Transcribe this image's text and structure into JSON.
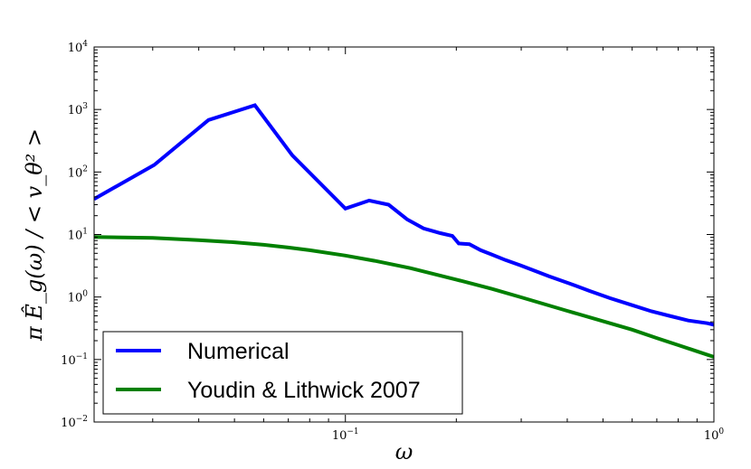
{
  "chart_data": {
    "type": "line",
    "xlabel": "ω",
    "ylabel": "π Ê_g(ω) / < v_θ² >",
    "xscale": "log",
    "yscale": "log",
    "xlim": [
      0.0208,
      1.0
    ],
    "ylim": [
      0.01,
      10000
    ],
    "x_ticks": [
      {
        "value": 0.1,
        "base": "10",
        "exp": "−1"
      },
      {
        "value": 1.0,
        "base": "10",
        "exp": "0"
      }
    ],
    "y_ticks": [
      {
        "value": 0.01,
        "base": "10",
        "exp": "−2"
      },
      {
        "value": 0.1,
        "base": "10",
        "exp": "−1"
      },
      {
        "value": 1,
        "base": "10",
        "exp": "0"
      },
      {
        "value": 10,
        "base": "10",
        "exp": "1"
      },
      {
        "value": 100,
        "base": "10",
        "exp": "2"
      },
      {
        "value": 1000,
        "base": "10",
        "exp": "3"
      },
      {
        "value": 10000,
        "base": "10",
        "exp": "4"
      }
    ],
    "grid": false,
    "legend_position": "lower-left",
    "series": [
      {
        "name": "Numerical",
        "color": "#0000ff",
        "x": [
          0.0208,
          0.0303,
          0.0425,
          0.0568,
          0.0718,
          0.1,
          0.116,
          0.131,
          0.147,
          0.163,
          0.181,
          0.195,
          0.203,
          0.217,
          0.233,
          0.249,
          0.272,
          0.299,
          0.325,
          0.357,
          0.405,
          0.46,
          0.522,
          0.6,
          0.677,
          0.757,
          0.852,
          0.96,
          1.0
        ],
        "y": [
          37,
          130,
          680,
          1170,
          185,
          26,
          35,
          30,
          17.5,
          12.5,
          10.5,
          9.5,
          7.2,
          7.0,
          5.6,
          4.8,
          3.9,
          3.2,
          2.65,
          2.15,
          1.65,
          1.25,
          0.96,
          0.74,
          0.59,
          0.5,
          0.42,
          0.38,
          0.36
        ]
      },
      {
        "name": "Youdin & Lithwick 2007",
        "color": "#008000",
        "x": [
          0.0208,
          0.03,
          0.04,
          0.05,
          0.06,
          0.07,
          0.08,
          0.1,
          0.12,
          0.15,
          0.2,
          0.25,
          0.3,
          0.4,
          0.5,
          0.6,
          0.7,
          0.8,
          0.9,
          1.0
        ],
        "y": [
          9.1,
          8.8,
          8.1,
          7.5,
          6.85,
          6.2,
          5.6,
          4.6,
          3.8,
          2.9,
          1.9,
          1.35,
          0.99,
          0.6,
          0.41,
          0.3,
          0.22,
          0.17,
          0.135,
          0.11
        ]
      }
    ]
  }
}
